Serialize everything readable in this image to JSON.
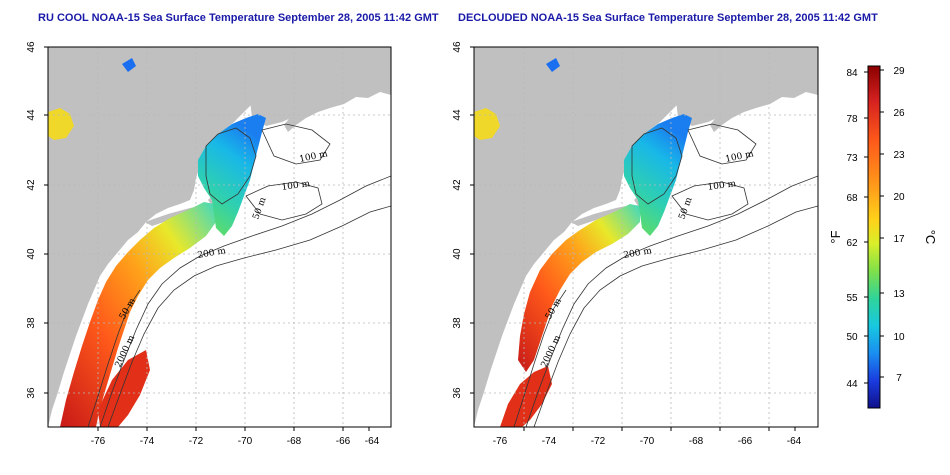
{
  "panels": [
    {
      "id": "left",
      "title": "RU COOL NOAA-15 Sea Surface Temperature September 28, 2005 11:42 GMT",
      "x_ticks": [
        "-76",
        "-74",
        "-72",
        "-70",
        "-68",
        "-66",
        "-64"
      ],
      "y_ticks": [
        "46",
        "44",
        "42",
        "40",
        "38",
        "36"
      ],
      "contour_labels": [
        "100 m",
        "100 m",
        "50 m",
        "200 m",
        "50 m",
        "2000 m"
      ]
    },
    {
      "id": "right",
      "title": "DECLOUDED NOAA-15 Sea Surface Temperature September 28, 2005 11:42 GMT",
      "x_ticks": [
        "-76",
        "-74",
        "-72",
        "-70",
        "-68",
        "-66",
        "-64"
      ],
      "y_ticks": [
        "46",
        "44",
        "42",
        "40",
        "38",
        "36"
      ],
      "contour_labels": [
        "100 m",
        "100 m",
        "50 m",
        "200 m",
        "50 m",
        "2000 m"
      ]
    }
  ],
  "colorbar": {
    "fahrenheit_labels": [
      "84",
      "78",
      "73",
      "68",
      "62",
      "55",
      "50",
      "44"
    ],
    "celsius_labels": [
      "29",
      "26",
      "23",
      "20",
      "17",
      "13",
      "10",
      "7"
    ],
    "fahrenheit_unit": "°F",
    "celsius_unit": "°C",
    "colors": [
      "#8b0000",
      "#d42020",
      "#ff5a1a",
      "#ff9a1a",
      "#ffd21a",
      "#d8ef2a",
      "#7fe04a",
      "#2fd49a",
      "#18c8e0",
      "#1a8ef0",
      "#1a3ce0",
      "#10108a"
    ]
  },
  "colors": {
    "land": "#c0c0c0",
    "ocean": "#ffffff",
    "title": "#1a1aa8",
    "grid": "#b0b0b0"
  }
}
